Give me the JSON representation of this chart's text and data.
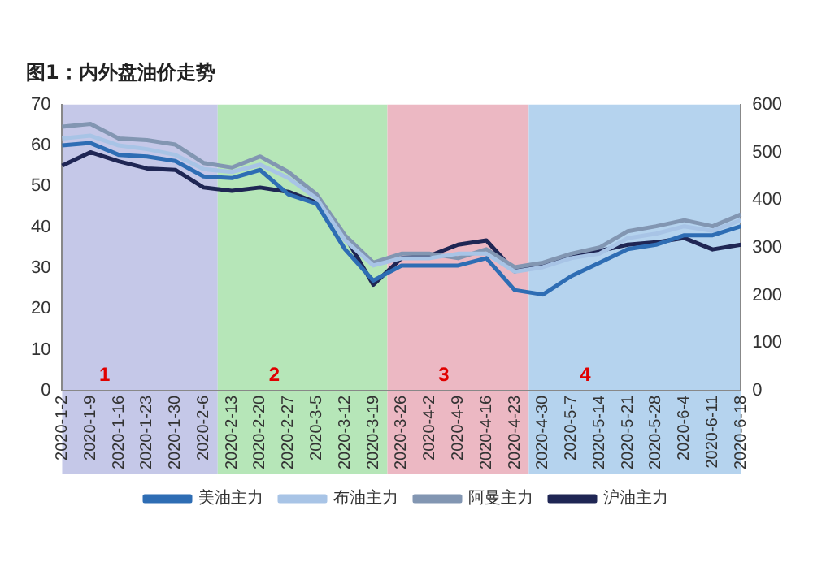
{
  "chart_data": {
    "type": "line",
    "title": "图1：内外盘油价走势",
    "categories": [
      "2020-1-2",
      "2020-1-9",
      "2020-1-16",
      "2020-1-23",
      "2020-1-30",
      "2020-2-6",
      "2020-2-13",
      "2020-2-20",
      "2020-2-27",
      "2020-3-5",
      "2020-3-12",
      "2020-3-19",
      "2020-3-26",
      "2020-4-2",
      "2020-4-9",
      "2020-4-16",
      "2020-4-23",
      "2020-4-30",
      "2020-5-7",
      "2020-5-14",
      "2020-5-21",
      "2020-5-28",
      "2020-6-4",
      "2020-6-11",
      "2020-6-18"
    ],
    "series": [
      {
        "name": "美油主力",
        "color": "#2e6db4",
        "values": [
          60,
          60.6,
          57.7,
          57.3,
          56.2,
          52.4,
          52,
          54,
          48,
          45.7,
          34.6,
          26.9,
          30.6,
          30.6,
          30.6,
          32.4,
          24.6,
          23.5,
          28,
          31.3,
          34.6,
          35.7,
          38,
          38,
          40.2
        ]
      },
      {
        "name": "布油主力",
        "color": "#a8c4e6",
        "values": [
          61.7,
          62.4,
          60,
          59.1,
          57.7,
          54.2,
          53.5,
          55.3,
          52,
          47,
          36.8,
          30.6,
          32.4,
          32.4,
          33.5,
          33.5,
          29.1,
          30.2,
          32.4,
          33.5,
          37.3,
          38.4,
          40.2,
          39.1,
          41.7
        ]
      },
      {
        "name": "阿曼主力",
        "color": "#8296b2",
        "values": [
          64.6,
          65.3,
          61.7,
          61.3,
          60.2,
          55.7,
          54.6,
          57.3,
          53.5,
          48,
          38,
          31.3,
          33.5,
          33.5,
          32.4,
          34.6,
          30.2,
          31.3,
          33.5,
          35,
          39,
          40.2,
          41.7,
          40.2,
          43.1
        ]
      },
      {
        "name": "沪油主力",
        "color": "#1f2654",
        "axis": "y2",
        "values": [
          472,
          500,
          481,
          466,
          463,
          426,
          419,
          426,
          417,
          394,
          324,
          222,
          278,
          283,
          306,
          315,
          250,
          265,
          283,
          293,
          306,
          311,
          320,
          296,
          306
        ]
      }
    ],
    "ylim": [
      0,
      70
    ],
    "yticks": [
      0,
      10,
      20,
      30,
      40,
      50,
      60,
      70
    ],
    "y2lim": [
      0,
      600
    ],
    "y2ticks": [
      0,
      100,
      200,
      300,
      400,
      500,
      600
    ],
    "bands": [
      {
        "axis": "x",
        "from": "2020-1-2",
        "to": "2020-2-6",
        "label": "1",
        "color": "#c5c8e8"
      },
      {
        "axis": "x",
        "from": "2020-2-13",
        "to": "2020-3-19",
        "label": "2",
        "color": "#b6e6b8"
      },
      {
        "axis": "x",
        "from": "2020-3-26",
        "to": "2020-4-23",
        "label": "3",
        "color": "#ecb8c3"
      },
      {
        "axis": "x",
        "from": "2020-4-30",
        "to": "2020-6-18",
        "label": "4",
        "color": "#b5d3ee"
      }
    ],
    "grid": false,
    "legend": "bottom",
    "marker": "none",
    "line_style": "solid"
  }
}
